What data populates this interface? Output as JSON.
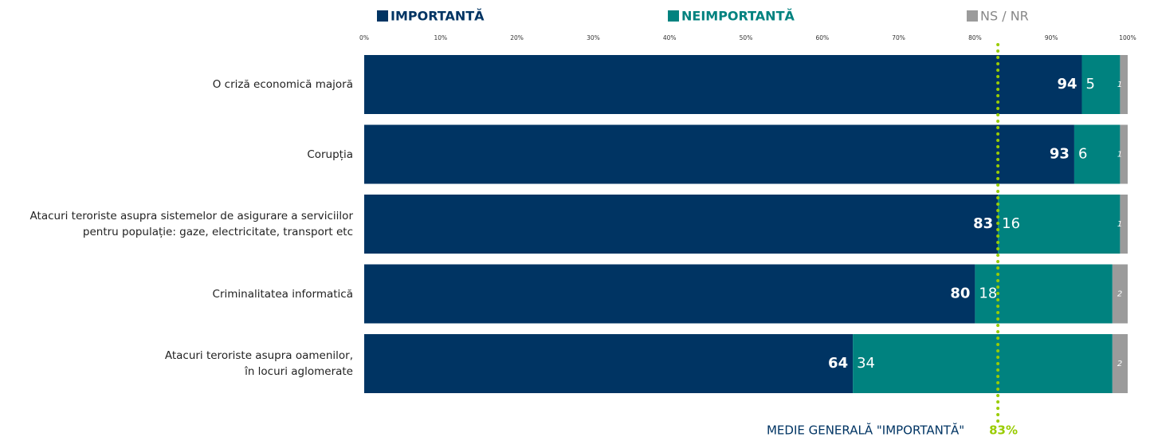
{
  "chart_data": {
    "type": "stacked-horizontal-bar",
    "categories": [
      "O criză economică majoră",
      "Corupția",
      "Atacuri teroriste asupra sistemelor de asigurare a serviciilor\npentru populație: gaze, electricitate, transport etc",
      "Criminalitatea informatică",
      "Atacuri teroriste asupra oamenilor,\nîn locuri aglomerate"
    ],
    "series": [
      {
        "name": "IMPORTANTĂ",
        "color": "#003463",
        "values": [
          94,
          93,
          83,
          80,
          64
        ]
      },
      {
        "name": "NEIMPORTANTĂ",
        "color": "#00827f",
        "values": [
          5,
          6,
          16,
          18,
          34
        ]
      },
      {
        "name": "NS / NR",
        "color": "#9b9b9b",
        "values": [
          1,
          1,
          1,
          2,
          2
        ]
      }
    ],
    "xlim": [
      0,
      100
    ],
    "xticks": [
      {
        "value": 0,
        "label": "0%"
      },
      {
        "value": 10,
        "label": "10%"
      },
      {
        "value": 20,
        "label": "20%"
      },
      {
        "value": 30,
        "label": "30%"
      },
      {
        "value": 40,
        "label": "40%"
      },
      {
        "value": 50,
        "label": "50%"
      },
      {
        "value": 60,
        "label": "60%"
      },
      {
        "value": 70,
        "label": "70%"
      },
      {
        "value": 80,
        "label": "80%"
      },
      {
        "value": 90,
        "label": "90%"
      },
      {
        "value": 100,
        "label": "100%"
      }
    ],
    "reference_line": {
      "label": "MEDIE GENERALĂ \"IMPORTANTĂ\"",
      "value": 83,
      "value_label": "83%",
      "color": "#99cc00"
    },
    "legend": "top"
  }
}
